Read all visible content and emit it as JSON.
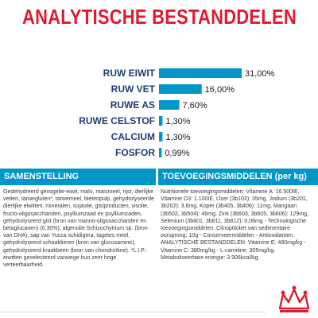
{
  "title": "ANALYTISCHE BESTANDDELEN",
  "chart_data": {
    "type": "bar",
    "orientation": "horizontal",
    "categories": [
      "RUW EIWIT",
      "RUW VET",
      "RUWE AS",
      "RUWE CELSTOF",
      "CALCIUM",
      "FOSFOR"
    ],
    "values": [
      31.0,
      16.0,
      7.6,
      1.3,
      1.3,
      0.99
    ],
    "value_labels": [
      "31,00%",
      "16,00%",
      "7,60%",
      "1,30%",
      "1,30%",
      "0,99%"
    ],
    "unit": "%",
    "xlim": [
      0,
      31
    ],
    "bar_color": "#0096c8",
    "grid": false
  },
  "panels": {
    "left": {
      "heading": "SAMENSTELLING",
      "text": "Gedehydreerd gevogelte-eiwit, maïs, maïsmeel, rijst, dierlijke vetten, tarwegluten*, tarwemeel, bietenpulp, gehydrolyseerde dierlijke eiwitten, mineralen, sojaolie, gistproducten, visolie, fructo-oligosacchariden, psylliumzaad en psylliumzaden, gehydrolyseerd gist (bron van manno-oligosacchariden en betaglucanen) (0,30%), algenolie Schizochytrium sp. (bron van DHA), sap van Yucca schidigera, tagetes meel, gehydrolyseerd schaaldieren (bron van glucosamine), gehydrolyseerd kraakbeen (bron van chondroïtine). *L.I.P.: eiwitten geselecteerd vanwege hun zeer hoge verteerbaarheid."
    },
    "right": {
      "heading": "TOEVOEGINGSMIDDELEN (per kg)",
      "text": "Nutritionele toevoegingsmiddelen: Vitamine A: 16.500IE, Vitamine D3: 1.100IE, IJzer (3b103): 35mg, Jodium (3b201, 3b202): 3,6mg, Koper (3b405, 3b406): 11mg, Mangaan (3b502, 3b504): 46mg, Zink (3b603, 3b605, 3b606): 129mg, Selenium (3b801, 3b811, 3b812): 0,06mg - Technologische toevoegingsmiddelen: Clinoptiloliet van sedimentaire oorsprong: 10g - Conserveermiddelen - Antioxidanten. ANALYTISCHE BESTANDDELEN: Vitamine E: 480mg/kg - Vitamine C: 380mg/kg - L-carnitine: 305mg/kg. Metaboliseerbare energie: 3.906kcal/kg."
    }
  },
  "logo": {
    "icon": "crown-icon",
    "color": "#e01b2f"
  }
}
